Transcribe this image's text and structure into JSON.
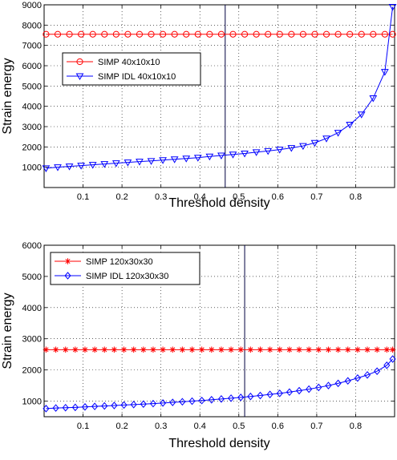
{
  "chart_data": [
    {
      "type": "line",
      "title": "",
      "xlabel": "Threshold density",
      "ylabel": "Strain energy",
      "xlim": [
        0,
        0.9
      ],
      "ylim": [
        0,
        9000
      ],
      "xticks": [
        "0.1",
        "0.2",
        "0.3",
        "0.4",
        "0.5",
        "0.6",
        "0.7",
        "0.8"
      ],
      "yticks": [
        "1000",
        "2000",
        "3000",
        "4000",
        "5000",
        "6000",
        "7000",
        "8000",
        "9000"
      ],
      "grid": true,
      "legend_position": "upper-left",
      "vline_x": 0.465,
      "x": [
        0.005,
        0.035,
        0.065,
        0.095,
        0.125,
        0.155,
        0.185,
        0.215,
        0.245,
        0.275,
        0.305,
        0.335,
        0.365,
        0.395,
        0.425,
        0.455,
        0.485,
        0.515,
        0.545,
        0.575,
        0.605,
        0.635,
        0.665,
        0.695,
        0.725,
        0.755,
        0.785,
        0.815,
        0.845,
        0.875,
        0.895
      ],
      "series": [
        {
          "name": "SIMP 40x10x10",
          "color": "#ff0000",
          "marker": "circle",
          "values": [
            7550,
            7550,
            7550,
            7550,
            7550,
            7550,
            7550,
            7550,
            7550,
            7550,
            7550,
            7550,
            7550,
            7550,
            7550,
            7550,
            7550,
            7550,
            7550,
            7550,
            7550,
            7550,
            7550,
            7550,
            7550,
            7550,
            7550,
            7550,
            7550,
            7550,
            7550
          ]
        },
        {
          "name": "SIMP IDL 40x10x10",
          "color": "#0000ff",
          "marker": "triangle-down",
          "values": [
            950,
            1000,
            1040,
            1080,
            1120,
            1160,
            1200,
            1240,
            1280,
            1310,
            1350,
            1390,
            1430,
            1470,
            1530,
            1580,
            1630,
            1680,
            1740,
            1800,
            1870,
            1950,
            2050,
            2200,
            2420,
            2700,
            3100,
            3600,
            4400,
            5700,
            8900
          ]
        }
      ]
    },
    {
      "type": "line",
      "title": "",
      "xlabel": "Threshold density",
      "ylabel": "Strain energy",
      "xlim": [
        0,
        0.9
      ],
      "ylim": [
        500,
        6000
      ],
      "xticks": [
        "0.1",
        "0.2",
        "0.3",
        "0.4",
        "0.5",
        "0.6",
        "0.7",
        "0.8"
      ],
      "yticks": [
        "1000",
        "2000",
        "3000",
        "4000",
        "5000",
        "6000"
      ],
      "grid": true,
      "legend_position": "upper-left",
      "vline_x": 0.515,
      "x": [
        0.005,
        0.03,
        0.055,
        0.08,
        0.105,
        0.13,
        0.155,
        0.18,
        0.205,
        0.23,
        0.255,
        0.28,
        0.305,
        0.33,
        0.355,
        0.38,
        0.405,
        0.43,
        0.455,
        0.48,
        0.505,
        0.53,
        0.555,
        0.58,
        0.605,
        0.63,
        0.655,
        0.68,
        0.705,
        0.73,
        0.755,
        0.78,
        0.805,
        0.83,
        0.855,
        0.88,
        0.895
      ],
      "series": [
        {
          "name": "SIMP 120x30x30",
          "color": "#ff0000",
          "marker": "star",
          "values": [
            2650,
            2650,
            2650,
            2650,
            2650,
            2650,
            2650,
            2650,
            2650,
            2650,
            2650,
            2650,
            2650,
            2650,
            2650,
            2650,
            2650,
            2650,
            2650,
            2650,
            2650,
            2650,
            2650,
            2650,
            2650,
            2650,
            2650,
            2650,
            2650,
            2650,
            2650,
            2650,
            2650,
            2650,
            2650,
            2650,
            2650
          ]
        },
        {
          "name": "SIMP IDL 120x30x30",
          "color": "#0000ff",
          "marker": "diamond",
          "values": [
            760,
            780,
            790,
            800,
            815,
            830,
            845,
            860,
            875,
            890,
            905,
            920,
            940,
            960,
            980,
            1000,
            1020,
            1045,
            1070,
            1095,
            1120,
            1150,
            1180,
            1215,
            1250,
            1290,
            1335,
            1385,
            1440,
            1500,
            1570,
            1650,
            1740,
            1840,
            1960,
            2150,
            2350
          ]
        }
      ]
    }
  ]
}
